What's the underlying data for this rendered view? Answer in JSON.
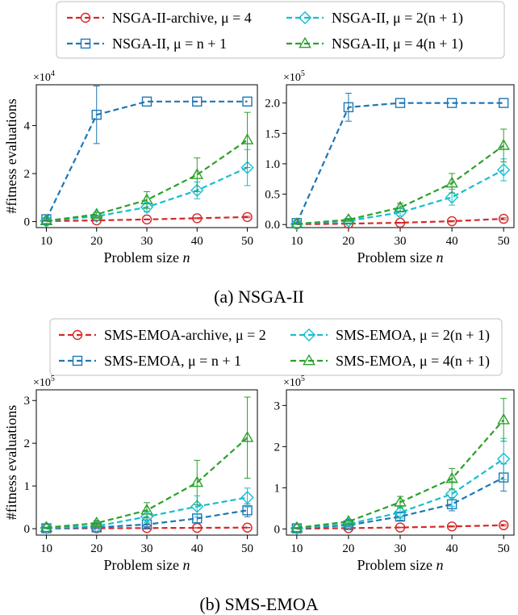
{
  "colors": {
    "archive": "#d62728",
    "mu_n1": "#1f77b4",
    "mu_2n1": "#17becf",
    "mu_4n1": "#2ca02c"
  },
  "panels": [
    {
      "caption": "(a) NSGA-II",
      "legend": [
        {
          "key": "archive",
          "marker": "circle",
          "text": "NSGA-II-archive, μ = 4"
        },
        {
          "key": "mu_2n1",
          "marker": "diamond",
          "text": "NSGA-II, μ = 2(n + 1)"
        },
        {
          "key": "mu_n1",
          "marker": "square",
          "text": "NSGA-II, μ = n + 1"
        },
        {
          "key": "mu_4n1",
          "marker": "triangle",
          "text": "NSGA-II, μ = 4(n + 1)"
        }
      ]
    },
    {
      "caption": "(b) SMS-EMOA",
      "legend": [
        {
          "key": "archive",
          "marker": "circle",
          "text": "SMS-EMOA-archive, μ = 2"
        },
        {
          "key": "mu_2n1",
          "marker": "diamond",
          "text": "SMS-EMOA, μ = 2(n + 1)"
        },
        {
          "key": "mu_n1",
          "marker": "square",
          "text": "SMS-EMOA, μ = n + 1"
        },
        {
          "key": "mu_4n1",
          "marker": "triangle",
          "text": "SMS-EMOA, μ = 4(n + 1)"
        }
      ]
    }
  ],
  "chart_data": [
    {
      "type": "line",
      "ylabel": "#fitness evaluations",
      "xlabel": "Problem size n",
      "offset_label": "×10^4",
      "scale": 10000,
      "x": [
        10,
        20,
        30,
        40,
        50
      ],
      "xlim": [
        8,
        52
      ],
      "ylim": [
        -2500,
        57000
      ],
      "yticks": [
        0,
        20000,
        40000
      ],
      "ytick_labels": [
        "0",
        "2",
        "4"
      ],
      "series": [
        {
          "key": "archive",
          "values": [
            200,
            500,
            900,
            1400,
            1900
          ],
          "err": [
            50,
            100,
            150,
            200,
            300
          ]
        },
        {
          "key": "mu_n1",
          "values": [
            1000,
            44500,
            50000,
            50000,
            50000
          ],
          "err": [
            300,
            12000,
            0,
            0,
            0
          ]
        },
        {
          "key": "mu_2n1",
          "values": [
            300,
            2200,
            6000,
            13000,
            22500
          ],
          "err": [
            100,
            500,
            2000,
            3500,
            7500
          ]
        },
        {
          "key": "mu_4n1",
          "values": [
            300,
            3000,
            9000,
            19500,
            34000
          ],
          "err": [
            100,
            800,
            3500,
            7000,
            11500
          ]
        }
      ]
    },
    {
      "type": "line",
      "ylabel": "",
      "xlabel": "Problem size n",
      "offset_label": "×10^5",
      "scale": 100000,
      "x": [
        10,
        20,
        30,
        40,
        50
      ],
      "xlim": [
        8,
        52
      ],
      "ylim": [
        -5000,
        230000
      ],
      "yticks": [
        0,
        50000,
        100000,
        150000,
        200000
      ],
      "ytick_labels": [
        "0.0",
        "0.5",
        "1.0",
        "1.5",
        "2.0"
      ],
      "series": [
        {
          "key": "archive",
          "values": [
            500,
            1500,
            3000,
            5500,
            9500
          ],
          "err": [
            200,
            400,
            600,
            1000,
            1500
          ]
        },
        {
          "key": "mu_n1",
          "values": [
            2500,
            193000,
            200000,
            200000,
            200000
          ],
          "err": [
            500,
            23000,
            0,
            0,
            0
          ]
        },
        {
          "key": "mu_2n1",
          "values": [
            1000,
            6000,
            20000,
            45000,
            90000
          ],
          "err": [
            300,
            1500,
            6000,
            13000,
            18000
          ]
        },
        {
          "key": "mu_4n1",
          "values": [
            1000,
            8000,
            28000,
            68000,
            130000
          ],
          "err": [
            300,
            2000,
            7000,
            16000,
            27000
          ]
        }
      ]
    },
    {
      "type": "line",
      "ylabel": "#fitness evaluations",
      "xlabel": "Problem size n",
      "offset_label": "×10^5",
      "scale": 100000,
      "x": [
        10,
        20,
        30,
        40,
        50
      ],
      "xlim": [
        8,
        52
      ],
      "ylim": [
        -15000,
        325000
      ],
      "yticks": [
        0,
        100000,
        200000,
        300000
      ],
      "ytick_labels": [
        "0",
        "1",
        "2",
        "3"
      ],
      "series": [
        {
          "key": "archive",
          "values": [
            500,
            1000,
            1500,
            2000,
            2500
          ],
          "err": [
            200,
            300,
            300,
            400,
            500
          ]
        },
        {
          "key": "mu_n1",
          "values": [
            1000,
            3000,
            10000,
            24000,
            43000
          ],
          "err": [
            400,
            1500,
            5000,
            10000,
            15000
          ]
        },
        {
          "key": "mu_2n1",
          "values": [
            2000,
            6000,
            28000,
            52000,
            73000
          ],
          "err": [
            700,
            3000,
            13000,
            25000,
            22000
          ]
        },
        {
          "key": "mu_4n1",
          "values": [
            2500,
            13000,
            43000,
            108000,
            213000
          ],
          "err": [
            1000,
            6000,
            18000,
            52000,
            95000
          ]
        }
      ]
    },
    {
      "type": "line",
      "ylabel": "",
      "xlabel": "Problem size n",
      "offset_label": "×10^5",
      "scale": 100000,
      "x": [
        10,
        20,
        30,
        40,
        50
      ],
      "xlim": [
        8,
        52
      ],
      "ylim": [
        -15000,
        338000
      ],
      "yticks": [
        0,
        100000,
        200000,
        300000
      ],
      "ytick_labels": [
        "0",
        "1",
        "2",
        "3"
      ],
      "series": [
        {
          "key": "archive",
          "values": [
            500,
            2000,
            3500,
            6000,
            9000
          ],
          "err": [
            200,
            400,
            700,
            1200,
            2000
          ]
        },
        {
          "key": "mu_n1",
          "values": [
            1500,
            9000,
            30000,
            60000,
            125000
          ],
          "err": [
            500,
            3000,
            9000,
            16000,
            33000
          ]
        },
        {
          "key": "mu_2n1",
          "values": [
            2000,
            12000,
            40000,
            85000,
            170000
          ],
          "err": [
            700,
            4000,
            14000,
            30000,
            50000
          ]
        },
        {
          "key": "mu_4n1",
          "values": [
            2500,
            18000,
            65000,
            122000,
            265000
          ],
          "err": [
            800,
            5000,
            14000,
            25000,
            52000
          ]
        }
      ]
    }
  ]
}
